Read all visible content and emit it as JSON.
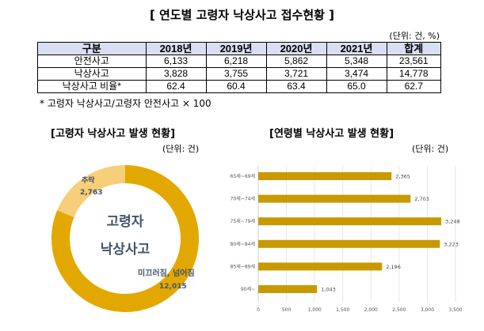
{
  "title": "[ 연도별 고령자 낙상사고 접수현황 ]",
  "unit": "(단위: 건, %)",
  "table": {
    "headers": [
      "구분",
      "2018년",
      "2019년",
      "2020년",
      "2021년",
      "합계"
    ],
    "rows": [
      [
        "안전사고",
        "6,133",
        "6,218",
        "5,862",
        "5,348",
        "23,561"
      ],
      [
        "낙상사고",
        "3,828",
        "3,755",
        "3,721",
        "3,474",
        "14,778"
      ],
      [
        "낙상사고 비율*",
        "62.4",
        "60.4",
        "63.4",
        "65.0",
        "62.7"
      ]
    ]
  },
  "footnote": "* 고령자 낙상사고/고령자 안전사고 × 100",
  "chart_data": [
    {
      "type": "pie",
      "title": "[고령자 낙상사고 발생 현황]",
      "unit": "(단위: 건)",
      "center_label": [
        "고령자",
        "낙상사고"
      ],
      "slices": [
        {
          "label": "미끄러짐, 넘어짐",
          "value": 12015,
          "value_label": "12,015",
          "color": "#E3A800"
        },
        {
          "label": "추락",
          "value": 2763,
          "value_label": "2,763",
          "color": "#F7CE7A"
        }
      ]
    },
    {
      "type": "bar",
      "orientation": "horizontal",
      "title": "[연령별 낙상사고 발생 현황]",
      "unit": "(단위: 건)",
      "categories": [
        "65세~69세",
        "70세~74세",
        "75세~79세",
        "80세~84세",
        "85세~89세",
        "90세~"
      ],
      "values": [
        2365,
        2703,
        3248,
        3223,
        2196,
        1043
      ],
      "value_labels": [
        "2,365",
        "2,703",
        "3,248",
        "3,223",
        "2,196",
        "1,043"
      ],
      "xlim": [
        0,
        3500
      ],
      "ticks": [
        0,
        500,
        1000,
        1500,
        2000,
        2500,
        3000,
        3500
      ],
      "tick_labels": [
        "0",
        "500",
        "1,000",
        "1,500",
        "2,000",
        "2,500",
        "3,000",
        "3,500"
      ],
      "grid": true,
      "color": "#C99A00"
    }
  ]
}
